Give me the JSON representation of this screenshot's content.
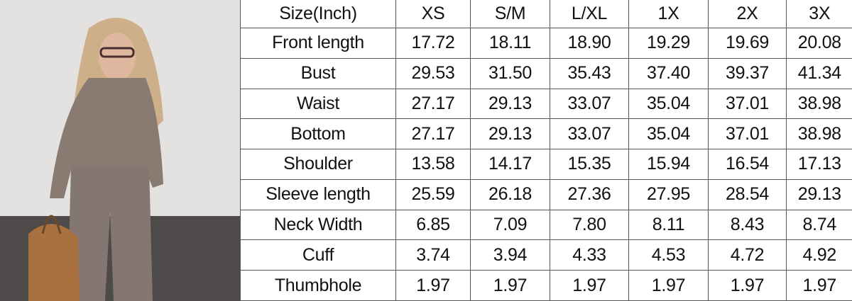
{
  "table": {
    "headers": [
      "Size(Inch)",
      "XS",
      "S/M",
      "L/XL",
      "1X",
      "2X",
      "3X"
    ],
    "rows": [
      {
        "label": "Front length",
        "values": [
          "17.72",
          "18.11",
          "18.90",
          "19.29",
          "19.69",
          "20.08"
        ]
      },
      {
        "label": "Bust",
        "values": [
          "29.53",
          "31.50",
          "35.43",
          "37.40",
          "39.37",
          "41.34"
        ]
      },
      {
        "label": "Waist",
        "values": [
          "27.17",
          "29.13",
          "33.07",
          "35.04",
          "37.01",
          "38.98"
        ]
      },
      {
        "label": "Bottom",
        "values": [
          "27.17",
          "29.13",
          "33.07",
          "35.04",
          "37.01",
          "38.98"
        ]
      },
      {
        "label": "Shoulder",
        "values": [
          "13.58",
          "14.17",
          "15.35",
          "15.94",
          "16.54",
          "17.13"
        ]
      },
      {
        "label": "Sleeve length",
        "values": [
          "25.59",
          "26.18",
          "27.36",
          "27.95",
          "28.54",
          "29.13"
        ]
      },
      {
        "label": "Neck Width",
        "values": [
          "6.85",
          "7.09",
          "7.80",
          "8.11",
          "8.43",
          "8.74"
        ]
      },
      {
        "label": "Cuff",
        "values": [
          "3.74",
          "3.94",
          "4.33",
          "4.53",
          "4.72",
          "4.92"
        ]
      },
      {
        "label": "Thumbhole",
        "values": [
          "1.97",
          "1.97",
          "1.97",
          "1.97",
          "1.97",
          "1.97"
        ]
      }
    ]
  },
  "colors": {
    "outfit": "#8a7b72",
    "wall": "#e6e4e3",
    "floor": "#4a4746",
    "bag": "#a8713f"
  }
}
